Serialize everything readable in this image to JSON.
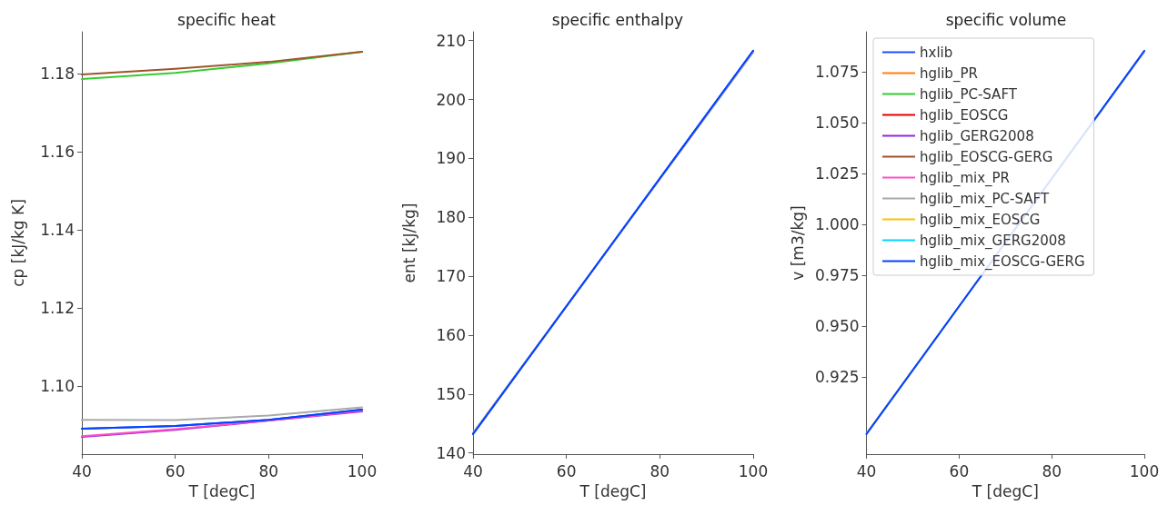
{
  "chart_data": [
    {
      "type": "line",
      "title": "specific heat",
      "xlabel": "T [degC]",
      "ylabel": "cp [kJ/kg K]",
      "x": [
        40,
        60,
        80,
        100
      ],
      "xlim": [
        40,
        100
      ],
      "xticks": [
        40,
        60,
        80,
        100
      ],
      "ylim": [
        1.0826,
        1.1907
      ],
      "yticks": [
        {
          "value": 1.1,
          "label": "1.10"
        },
        1.12,
        1.14,
        1.16,
        1.18
      ],
      "line_style": "solid",
      "marker": "none",
      "series": [
        {
          "color": "#1f4fff",
          "values": [
            1.0891,
            1.0898,
            1.0914,
            1.094
          ]
        },
        {
          "color": "#ff7f0e",
          "values": [
            null,
            null,
            null,
            null
          ]
        },
        {
          "color": "#33cc33",
          "values": [
            1.1786,
            1.1802,
            1.1826,
            1.1856
          ]
        },
        {
          "color": "#e50000",
          "values": [
            null,
            null,
            null,
            null
          ]
        },
        {
          "color": "#8a2be2",
          "values": [
            1.087,
            1.0888,
            1.0912,
            1.0935
          ]
        },
        {
          "color": "#a0522d",
          "values": [
            1.1798,
            1.1812,
            1.183,
            1.1856
          ]
        },
        {
          "color": "#ff4fc8",
          "values": [
            1.0872,
            1.089,
            1.0912,
            1.0937
          ]
        },
        {
          "color": "#a9a9a9",
          "values": [
            1.0914,
            1.0913,
            1.0925,
            1.0946
          ]
        },
        {
          "color": "#ffbf00",
          "values": [
            null,
            null,
            null,
            null
          ]
        },
        {
          "color": "#00d5ff",
          "values": [
            null,
            null,
            null,
            null
          ]
        },
        {
          "color": "#0343ff",
          "values": [
            1.0891,
            1.0898,
            1.0914,
            1.094
          ]
        }
      ]
    },
    {
      "type": "line",
      "title": "specific enthalpy",
      "xlabel": "T [degC]",
      "ylabel": "ent [kJ/kg]",
      "x": [
        40,
        100
      ],
      "xlim": [
        40,
        100
      ],
      "xticks": [
        40,
        60,
        80,
        100
      ],
      "ylim": [
        139.8,
        211.5
      ],
      "yticks": [
        140,
        150,
        160,
        170,
        180,
        190,
        200,
        210
      ],
      "line_style": "solid",
      "marker": "none",
      "series": [
        {
          "color": "#1f4fff",
          "values": [
            143.2,
            208.3
          ]
        },
        {
          "color": "#ff7f0e",
          "values": [
            null,
            null
          ]
        },
        {
          "color": "#33cc33",
          "values": [
            null,
            null
          ]
        },
        {
          "color": "#e50000",
          "values": [
            null,
            null
          ]
        },
        {
          "color": "#8a2be2",
          "values": [
            null,
            null
          ]
        },
        {
          "color": "#a0522d",
          "values": [
            null,
            null
          ]
        },
        {
          "color": "#ff4fc8",
          "values": [
            null,
            null
          ]
        },
        {
          "color": "#a9a9a9",
          "values": [
            143.4,
            208.0
          ]
        },
        {
          "color": "#ffbf00",
          "values": [
            null,
            null
          ]
        },
        {
          "color": "#00d5ff",
          "values": [
            null,
            null
          ]
        },
        {
          "color": "#0343ff",
          "values": [
            143.2,
            208.3
          ]
        }
      ]
    },
    {
      "type": "line",
      "title": "specific volume",
      "xlabel": "T [degC]",
      "ylabel": "v [m3/kg]",
      "x": [
        40,
        100
      ],
      "xlim": [
        40,
        100
      ],
      "xticks": [
        40,
        60,
        80,
        100
      ],
      "ylim": [
        0.887,
        1.0946
      ],
      "yticks": [
        0.925,
        {
          "value": 0.95,
          "label": "0.950"
        },
        0.975,
        {
          "value": 1,
          "label": "1.000"
        },
        1.025,
        {
          "value": 1.05,
          "label": "1.050"
        },
        1.075
      ],
      "line_style": "solid",
      "marker": "none",
      "legend": "top left",
      "series": [
        {
          "name": "hxlib",
          "color": "#1f4fff",
          "values": [
            null,
            null
          ]
        },
        {
          "name": "hglib_PR",
          "color": "#ff7f0e",
          "values": [
            null,
            null
          ]
        },
        {
          "name": "hglib_PC-SAFT",
          "color": "#33cc33",
          "values": [
            null,
            null
          ]
        },
        {
          "name": "hglib_EOSCG",
          "color": "#e50000",
          "values": [
            null,
            null
          ]
        },
        {
          "name": "hglib_GERG2008",
          "color": "#8a2be2",
          "values": [
            null,
            null
          ]
        },
        {
          "name": "hglib_EOSCG-GERG",
          "color": "#a0522d",
          "values": [
            null,
            null
          ]
        },
        {
          "name": "hglib_mix_PR",
          "color": "#ff4fc8",
          "values": [
            null,
            null
          ]
        },
        {
          "name": "hglib_mix_PC-SAFT",
          "color": "#a9a9a9",
          "values": [
            0.8972,
            1.0848
          ]
        },
        {
          "name": "hglib_mix_EOSCG",
          "color": "#ffbf00",
          "values": [
            null,
            null
          ]
        },
        {
          "name": "hglib_mix_GERG2008",
          "color": "#00d5ff",
          "values": [
            null,
            null
          ]
        },
        {
          "name": "hglib_mix_EOSCG-GERG",
          "color": "#0343ff",
          "values": [
            0.8969,
            1.0853
          ]
        }
      ]
    }
  ]
}
